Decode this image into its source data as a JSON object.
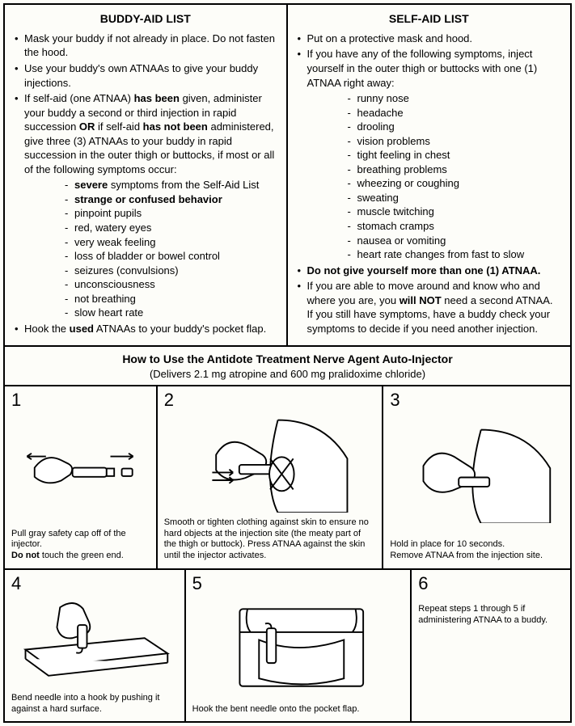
{
  "buddy": {
    "title": "BUDDY-AID LIST",
    "items": [
      {
        "html": "Mask your buddy if not already in place. Do not fasten the hood."
      },
      {
        "html": "Use your buddy's own ATNAAs to give your buddy injections."
      },
      {
        "html": "If self-aid (one ATNAA) <span class='b'>has been</span> given, administer your buddy a second or third injection in rapid succession <span class='b'>OR</span> if self-aid <span class='b'>has not been</span> administered, give three (3) ATNAAs to your buddy in rapid succession in the outer thigh or buttocks, if most or all of the following symptoms occur:",
        "sub": [
          "<span class='b'>severe</span> symptoms from the Self-Aid List",
          "<span class='b'>strange or confused behavior</span>",
          "pinpoint pupils",
          "red, watery eyes",
          "very weak feeling",
          "loss of bladder or bowel control",
          "seizures (convulsions)",
          "unconsciousness",
          "not breathing",
          "slow heart rate"
        ]
      },
      {
        "html": "Hook the <span class='b'>used</span> ATNAAs to your buddy's pocket flap."
      }
    ]
  },
  "self": {
    "title": "SELF-AID LIST",
    "items": [
      {
        "html": "Put on a protective mask and hood."
      },
      {
        "html": "If you have any of the following symptoms, inject yourself in the outer thigh or buttocks with one (1) ATNAA right away:",
        "sub": [
          "runny nose",
          "headache",
          "drooling",
          "vision problems",
          "tight feeling in chest",
          "breathing problems",
          "wheezing or coughing",
          "sweating",
          "muscle twitching",
          "stomach cramps",
          "nausea or vomiting",
          "heart rate changes from fast to slow"
        ]
      },
      {
        "html": "<span class='b'>Do not give yourself more than one (1) ATNAA.</span>"
      },
      {
        "html": "If you are able to move around and know who and where you are, you <span class='b'>will NOT</span> need a second ATNAA. If you still have symptoms, have a buddy check your symptoms to decide if you need another injection."
      }
    ]
  },
  "howto": {
    "title": "How to Use the Antidote Treatment Nerve Agent Auto-Injector",
    "subtitle": "(Delivers 2.1 mg atropine and 600 mg pralidoxime chloride)"
  },
  "steps": [
    {
      "n": "1",
      "caption": "Pull gray safety cap off of the injector.<br><span class='b'>Do not</span> touch the green end."
    },
    {
      "n": "2",
      "caption": "Smooth or tighten clothing against skin to ensure no hard objects at the injection site (the meaty part of the thigh or buttock). Press ATNAA against the skin until the injector activates."
    },
    {
      "n": "3",
      "caption": "Hold in place for 10 seconds.<br>Remove ATNAA from the injection site."
    },
    {
      "n": "4",
      "caption": "Bend needle into a hook by pushing it against a hard surface."
    },
    {
      "n": "5",
      "caption": "Hook the bent needle onto the pocket flap."
    },
    {
      "n": "6",
      "caption": "Repeat steps 1 through 5 if administering ATNAA to a buddy."
    }
  ]
}
